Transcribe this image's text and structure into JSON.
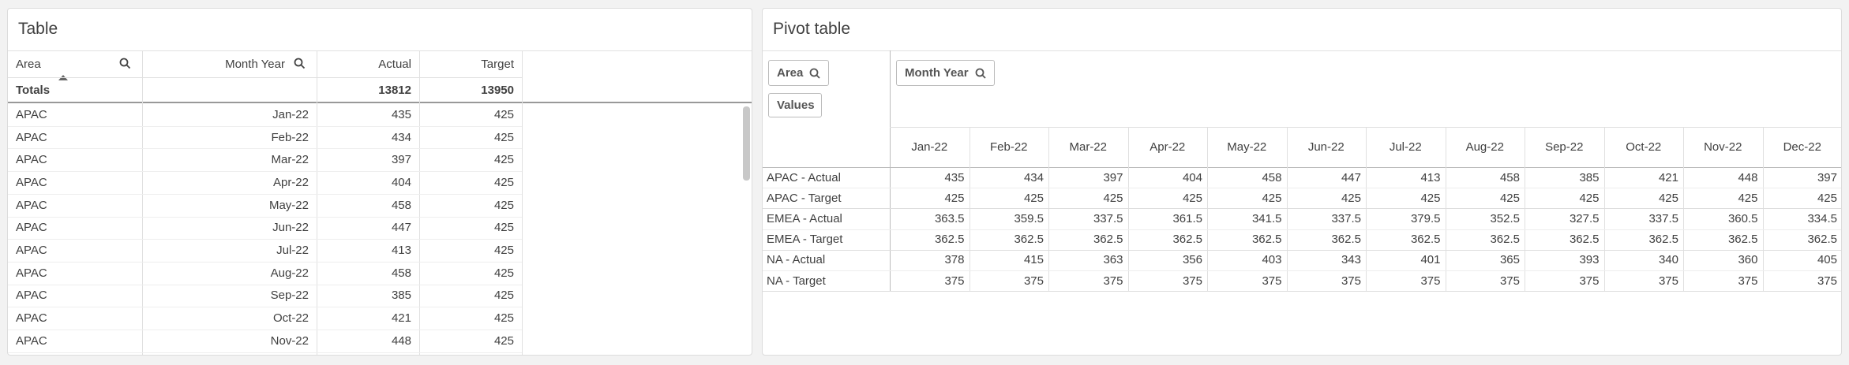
{
  "table": {
    "title": "Table",
    "headers": [
      "Area",
      "Month Year",
      "Actual",
      "Target"
    ],
    "totals": {
      "label": "Totals",
      "actual": 13812,
      "target": 13950
    },
    "rows": [
      [
        "APAC",
        "Jan-22",
        435,
        425
      ],
      [
        "APAC",
        "Feb-22",
        434,
        425
      ],
      [
        "APAC",
        "Mar-22",
        397,
        425
      ],
      [
        "APAC",
        "Apr-22",
        404,
        425
      ],
      [
        "APAC",
        "May-22",
        458,
        425
      ],
      [
        "APAC",
        "Jun-22",
        447,
        425
      ],
      [
        "APAC",
        "Jul-22",
        413,
        425
      ],
      [
        "APAC",
        "Aug-22",
        458,
        425
      ],
      [
        "APAC",
        "Sep-22",
        385,
        425
      ],
      [
        "APAC",
        "Oct-22",
        421,
        425
      ],
      [
        "APAC",
        "Nov-22",
        448,
        425
      ]
    ]
  },
  "pivot": {
    "title": "Pivot table",
    "row_dimension": "Area",
    "values_label": "Values",
    "column_dimension": "Month Year",
    "columns": [
      "Jan-22",
      "Feb-22",
      "Mar-22",
      "Apr-22",
      "May-22",
      "Jun-22",
      "Jul-22",
      "Aug-22",
      "Sep-22",
      "Oct-22",
      "Nov-22",
      "Dec-22"
    ],
    "rows": [
      {
        "label": "APAC - Actual",
        "values": [
          435,
          434,
          397,
          404,
          458,
          447,
          413,
          458,
          385,
          421,
          448,
          397
        ]
      },
      {
        "label": "APAC - Target",
        "values": [
          425,
          425,
          425,
          425,
          425,
          425,
          425,
          425,
          425,
          425,
          425,
          425
        ]
      },
      {
        "label": "EMEA - Actual",
        "values": [
          363.5,
          359.5,
          337.5,
          361.5,
          341.5,
          337.5,
          379.5,
          352.5,
          327.5,
          337.5,
          360.5,
          334.5
        ]
      },
      {
        "label": "EMEA - Target",
        "values": [
          362.5,
          362.5,
          362.5,
          362.5,
          362.5,
          362.5,
          362.5,
          362.5,
          362.5,
          362.5,
          362.5,
          362.5
        ]
      },
      {
        "label": "NA - Actual",
        "values": [
          378,
          415,
          363,
          356,
          403,
          343,
          401,
          365,
          393,
          340,
          360,
          405
        ]
      },
      {
        "label": "NA - Target",
        "values": [
          375,
          375,
          375,
          375,
          375,
          375,
          375,
          375,
          375,
          375,
          375,
          375
        ]
      }
    ]
  }
}
